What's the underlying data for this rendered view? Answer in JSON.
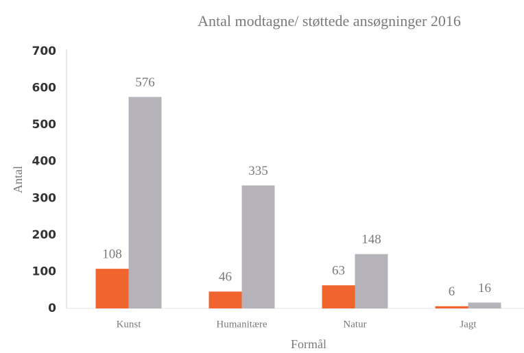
{
  "chart_data": {
    "type": "bar",
    "title": "Antal modtagne/ støttede ansøgninger 2016",
    "x_label": "Formål",
    "y_label": "Antal",
    "categories": [
      "Kunst",
      "Humanitære",
      "Natur",
      "Jagt"
    ],
    "series": [
      {
        "color": "#f0642d",
        "values": [
          108,
          46,
          63,
          6
        ]
      },
      {
        "color": "#b5b3b9",
        "values": [
          576,
          335,
          148,
          16
        ]
      }
    ],
    "ylim": [
      0,
      700
    ],
    "yticks": [
      0,
      100,
      200,
      300,
      400,
      500,
      600,
      700
    ],
    "grid": false
  }
}
